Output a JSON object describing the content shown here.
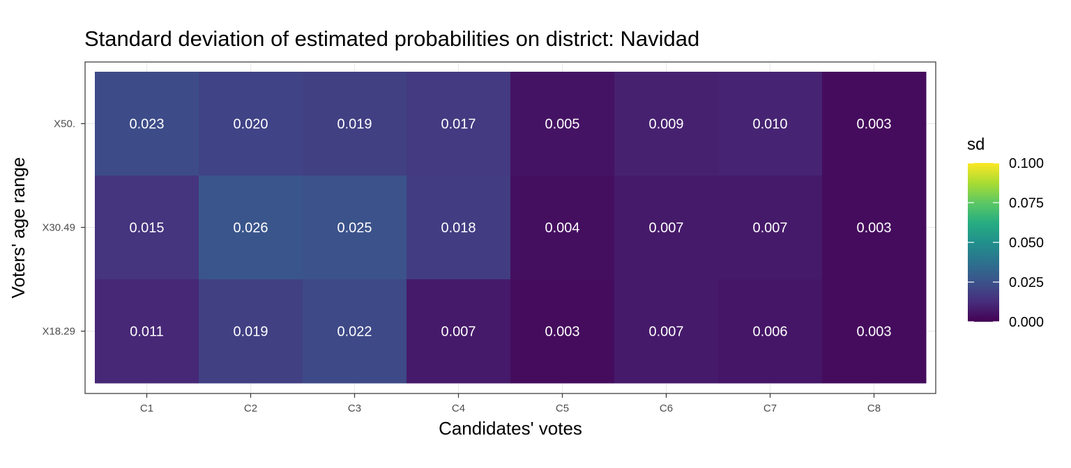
{
  "chart_data": {
    "type": "heatmap",
    "title": "Standard deviation of estimated probabilities on district: Navidad",
    "xlabel": "Candidates' votes",
    "ylabel": "Voters' age range",
    "x_categories": [
      "C1",
      "C2",
      "C3",
      "C4",
      "C5",
      "C6",
      "C7",
      "C8"
    ],
    "y_categories": [
      "X50.",
      "X30.49",
      "X18.29"
    ],
    "values": [
      [
        0.023,
        0.02,
        0.019,
        0.017,
        0.005,
        0.009,
        0.01,
        0.003
      ],
      [
        0.015,
        0.026,
        0.025,
        0.018,
        0.004,
        0.007,
        0.007,
        0.003
      ],
      [
        0.011,
        0.019,
        0.022,
        0.007,
        0.003,
        0.007,
        0.006,
        0.003
      ]
    ],
    "labels": [
      [
        "0.023",
        "0.020",
        "0.019",
        "0.017",
        "0.005",
        "0.009",
        "0.010",
        "0.003"
      ],
      [
        "0.015",
        "0.026",
        "0.025",
        "0.018",
        "0.004",
        "0.007",
        "0.007",
        "0.003"
      ],
      [
        "0.011",
        "0.019",
        "0.022",
        "0.007",
        "0.003",
        "0.007",
        "0.006",
        "0.003"
      ]
    ],
    "legend": {
      "title": "sd",
      "range": [
        0,
        0.1
      ],
      "ticks": [
        0.1,
        0.075,
        0.05,
        0.025,
        0.0
      ],
      "tick_labels": [
        "0.100",
        "0.075",
        "0.050",
        "0.025",
        "0.000"
      ],
      "position": "right"
    },
    "colorscale": "viridis",
    "grid": true
  }
}
